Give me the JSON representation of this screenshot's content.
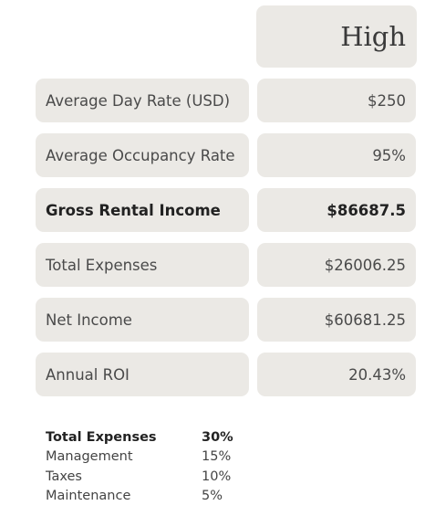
{
  "header": {
    "column_title": "High"
  },
  "rows": [
    {
      "label": "Average Day Rate (USD)",
      "value": "$250"
    },
    {
      "label": "Average Occupancy Rate",
      "value": "95%"
    },
    {
      "label": "Gross Rental Income",
      "value": "$86687.5"
    },
    {
      "label": "Total Expenses",
      "value": "$26006.25"
    },
    {
      "label": "Net Income",
      "value": "$60681.25"
    },
    {
      "label": "Annual ROI",
      "value": "20.43%"
    }
  ],
  "expenses_breakdown": {
    "title": "Total Expenses",
    "total": "30%",
    "items": [
      {
        "label": "Management",
        "value": "15%"
      },
      {
        "label": "Taxes",
        "value": "10%"
      },
      {
        "label": "Maintenance",
        "value": "5%"
      }
    ]
  }
}
